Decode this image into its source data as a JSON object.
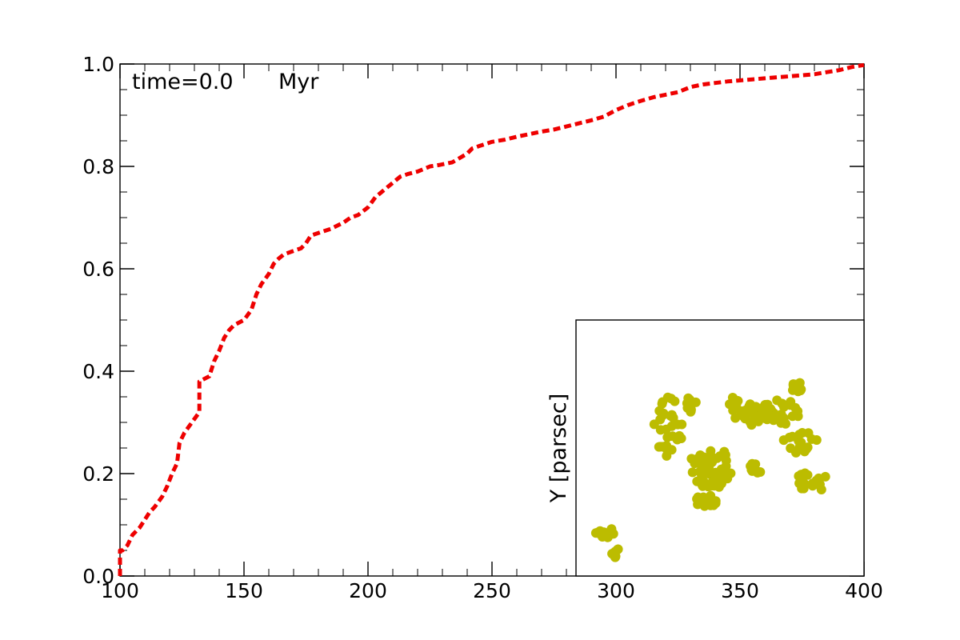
{
  "chart_data": {
    "type": "line",
    "title": "",
    "xlabel": "",
    "ylabel": "",
    "xlim": [
      100,
      400
    ],
    "ylim": [
      0.0,
      1.0
    ],
    "x_ticks": [
      "100",
      "150",
      "200",
      "250",
      "300",
      "350",
      "400"
    ],
    "y_ticks": [
      "0.0",
      "0.2",
      "0.4",
      "0.6",
      "0.8",
      "1.0"
    ],
    "grid": false,
    "annotation": {
      "label": "time=0.0",
      "unit": "Myr"
    },
    "series": [
      {
        "color": "#ee0000",
        "linestyle": "dashed",
        "x": [
          100,
          100,
          101,
          103,
          105,
          108,
          110,
          112,
          114,
          117,
          119,
          121,
          123,
          124,
          126,
          129,
          132,
          132,
          136,
          138,
          140,
          142,
          144,
          146,
          150,
          153,
          155,
          157,
          160,
          162,
          164,
          166,
          170,
          173,
          175,
          177,
          180,
          185,
          190,
          193,
          196,
          200,
          203,
          208,
          213,
          216,
          220,
          225,
          229,
          234,
          240,
          242,
          245,
          250,
          255,
          260,
          265,
          270,
          275,
          280,
          285,
          290,
          295,
          300,
          305,
          310,
          315,
          320,
          325,
          330,
          335,
          340,
          345,
          350,
          355,
          360,
          365,
          370,
          375,
          380,
          385,
          390,
          395,
          400
        ],
        "y": [
          0.0,
          0.05,
          0.05,
          0.06,
          0.08,
          0.095,
          0.11,
          0.125,
          0.135,
          0.155,
          0.175,
          0.2,
          0.22,
          0.26,
          0.28,
          0.3,
          0.32,
          0.38,
          0.39,
          0.42,
          0.44,
          0.465,
          0.48,
          0.49,
          0.5,
          0.52,
          0.55,
          0.57,
          0.59,
          0.61,
          0.62,
          0.628,
          0.635,
          0.64,
          0.65,
          0.665,
          0.67,
          0.678,
          0.69,
          0.7,
          0.705,
          0.72,
          0.74,
          0.76,
          0.78,
          0.785,
          0.79,
          0.8,
          0.803,
          0.808,
          0.825,
          0.835,
          0.84,
          0.848,
          0.852,
          0.858,
          0.863,
          0.868,
          0.872,
          0.878,
          0.884,
          0.89,
          0.897,
          0.91,
          0.92,
          0.928,
          0.935,
          0.94,
          0.945,
          0.955,
          0.96,
          0.963,
          0.966,
          0.968,
          0.97,
          0.972,
          0.974,
          0.976,
          0.978,
          0.98,
          0.984,
          0.988,
          0.994,
          0.998
        ]
      }
    ],
    "inset": {
      "type": "scatter",
      "ylabel": "Y [parsec]",
      "color": "#bcbc00",
      "note": "unlabeled inset axes; points in inset axes units (0-1)",
      "clusters": [
        {
          "cx": 0.1,
          "cy": 0.17,
          "n": 14,
          "rx": 0.035,
          "ry": 0.02,
          "seed": 1
        },
        {
          "cx": 0.14,
          "cy": 0.09,
          "n": 8,
          "rx": 0.015,
          "ry": 0.02,
          "seed": 2
        },
        {
          "cx": 0.32,
          "cy": 0.58,
          "n": 30,
          "rx": 0.05,
          "ry": 0.12,
          "seed": 3
        },
        {
          "cx": 0.4,
          "cy": 0.67,
          "n": 14,
          "rx": 0.02,
          "ry": 0.03,
          "seed": 4
        },
        {
          "cx": 0.47,
          "cy": 0.42,
          "n": 60,
          "rx": 0.08,
          "ry": 0.08,
          "seed": 5
        },
        {
          "cx": 0.45,
          "cy": 0.29,
          "n": 14,
          "rx": 0.04,
          "ry": 0.03,
          "seed": 6
        },
        {
          "cx": 0.6,
          "cy": 0.63,
          "n": 28,
          "rx": 0.06,
          "ry": 0.05,
          "seed": 7
        },
        {
          "cx": 0.71,
          "cy": 0.64,
          "n": 36,
          "rx": 0.07,
          "ry": 0.05,
          "seed": 8
        },
        {
          "cx": 0.62,
          "cy": 0.42,
          "n": 10,
          "rx": 0.03,
          "ry": 0.02,
          "seed": 9
        },
        {
          "cx": 0.78,
          "cy": 0.52,
          "n": 18,
          "rx": 0.06,
          "ry": 0.05,
          "seed": 10
        },
        {
          "cx": 0.82,
          "cy": 0.37,
          "n": 20,
          "rx": 0.06,
          "ry": 0.04,
          "seed": 11
        },
        {
          "cx": 0.77,
          "cy": 0.74,
          "n": 10,
          "rx": 0.025,
          "ry": 0.02,
          "seed": 12
        },
        {
          "cx": 0.55,
          "cy": 0.68,
          "n": 10,
          "rx": 0.02,
          "ry": 0.02,
          "seed": 13
        }
      ]
    }
  },
  "colors": {
    "axis": "#000000",
    "line": "#ee0000",
    "points": "#bcbc00"
  }
}
